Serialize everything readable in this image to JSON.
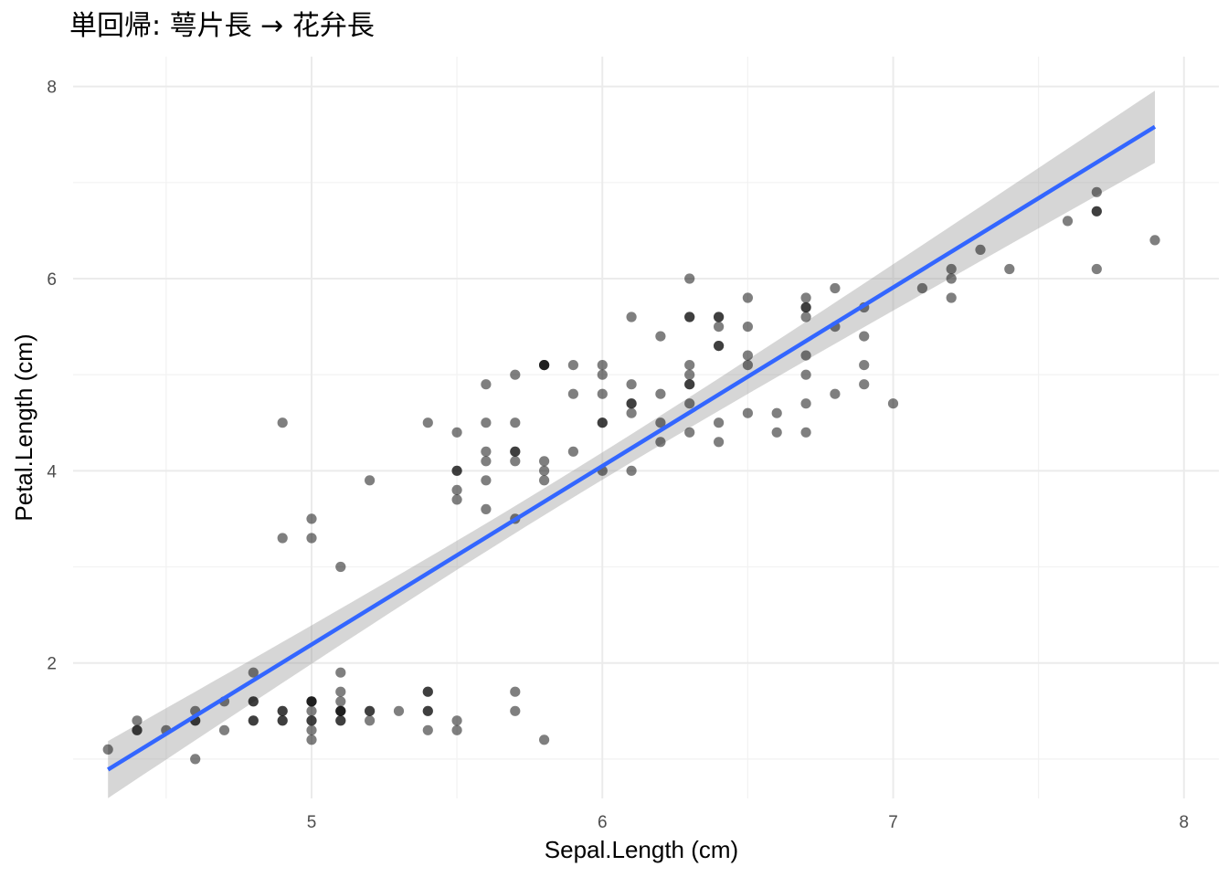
{
  "chart_data": {
    "type": "scatter",
    "title": "単回帰: 萼片長 → 花弁長",
    "xlabel": "Sepal.Length (cm)",
    "ylabel": "Petal.Length (cm)",
    "xlim": [
      4.18,
      8.12
    ],
    "ylim": [
      0.59,
      8.31
    ],
    "x_ticks": [
      5,
      6,
      7,
      8
    ],
    "y_ticks": [
      2,
      4,
      6,
      8
    ],
    "x_minor_ticks": [
      4.5,
      5.5,
      6.5,
      7.5
    ],
    "y_minor_ticks": [
      1,
      3,
      5,
      7
    ],
    "grid": true,
    "legend": "none",
    "points": {
      "color": "#000000",
      "opacity": 0.5,
      "x": [
        5.1,
        4.9,
        4.7,
        4.6,
        5.0,
        5.4,
        4.6,
        5.0,
        4.4,
        4.9,
        5.4,
        4.8,
        4.8,
        4.3,
        5.8,
        5.7,
        5.4,
        5.1,
        5.7,
        5.1,
        5.4,
        5.1,
        4.6,
        5.1,
        4.8,
        5.0,
        5.0,
        5.2,
        5.2,
        4.7,
        4.8,
        5.4,
        5.2,
        5.5,
        4.9,
        5.0,
        5.5,
        4.9,
        4.4,
        5.1,
        5.0,
        4.5,
        4.4,
        5.0,
        5.1,
        4.8,
        5.1,
        4.6,
        5.3,
        5.0,
        7.0,
        6.4,
        6.9,
        5.5,
        6.5,
        5.7,
        6.3,
        4.9,
        6.6,
        5.2,
        5.0,
        5.9,
        6.0,
        6.1,
        5.6,
        6.7,
        5.6,
        5.8,
        6.2,
        5.6,
        5.9,
        6.1,
        6.3,
        6.1,
        6.4,
        6.6,
        6.8,
        6.7,
        6.0,
        5.7,
        5.5,
        5.5,
        5.8,
        6.0,
        5.4,
        6.0,
        6.7,
        6.3,
        5.6,
        5.5,
        5.5,
        6.1,
        5.8,
        5.0,
        5.6,
        5.7,
        5.7,
        6.2,
        5.1,
        5.7,
        6.3,
        5.8,
        7.1,
        6.3,
        6.5,
        7.6,
        4.9,
        7.3,
        6.7,
        7.2,
        6.5,
        6.4,
        6.8,
        5.7,
        5.8,
        6.4,
        6.5,
        7.7,
        7.7,
        6.0,
        6.9,
        5.6,
        7.7,
        6.3,
        6.7,
        7.2,
        6.2,
        6.1,
        6.4,
        7.2,
        7.4,
        7.9,
        6.4,
        6.3,
        6.1,
        7.7,
        6.3,
        6.4,
        6.0,
        6.9,
        6.7,
        6.9,
        5.8,
        6.8,
        6.7,
        6.7,
        6.3,
        6.5,
        6.2,
        5.9
      ],
      "y": [
        1.4,
        1.4,
        1.3,
        1.5,
        1.4,
        1.7,
        1.4,
        1.5,
        1.4,
        1.5,
        1.5,
        1.6,
        1.4,
        1.1,
        1.2,
        1.5,
        1.3,
        1.4,
        1.7,
        1.5,
        1.7,
        1.5,
        1.0,
        1.7,
        1.9,
        1.6,
        1.6,
        1.5,
        1.4,
        1.6,
        1.6,
        1.5,
        1.5,
        1.4,
        1.5,
        1.2,
        1.3,
        1.4,
        1.3,
        1.5,
        1.3,
        1.3,
        1.3,
        1.6,
        1.9,
        1.4,
        1.6,
        1.4,
        1.5,
        1.4,
        4.7,
        4.5,
        4.9,
        4.0,
        4.6,
        4.5,
        4.7,
        3.3,
        4.6,
        3.9,
        3.5,
        4.2,
        4.0,
        4.7,
        3.6,
        4.4,
        4.5,
        4.1,
        4.5,
        3.9,
        4.8,
        4.0,
        4.9,
        4.7,
        4.3,
        4.4,
        4.8,
        5.0,
        4.5,
        3.5,
        3.8,
        3.7,
        3.9,
        5.1,
        4.5,
        4.5,
        4.7,
        4.4,
        4.1,
        4.0,
        4.4,
        4.6,
        4.0,
        3.3,
        4.2,
        4.2,
        4.2,
        4.3,
        3.0,
        4.1,
        6.0,
        5.1,
        5.9,
        5.6,
        5.8,
        6.6,
        4.5,
        6.3,
        5.8,
        6.1,
        5.1,
        5.3,
        5.5,
        5.0,
        5.1,
        5.3,
        5.5,
        6.7,
        6.9,
        5.0,
        5.7,
        4.9,
        6.7,
        4.9,
        5.7,
        6.0,
        4.8,
        4.9,
        5.6,
        5.8,
        6.1,
        6.4,
        5.6,
        5.1,
        5.6,
        6.1,
        5.6,
        5.5,
        4.8,
        5.4,
        5.6,
        5.1,
        5.1,
        5.9,
        5.7,
        5.2,
        5.0,
        5.2,
        5.4,
        5.1
      ]
    },
    "fit": {
      "method": "lm",
      "intercept": -7.101,
      "slope": 1.8584,
      "x_range": [
        4.3,
        7.9
      ],
      "color": "#3366ff",
      "ribbon_color": "#999999",
      "ribbon_opacity": 0.4,
      "n": 150,
      "x_mean": 5.8433,
      "sxx": 102.1683,
      "residual_se": 0.8678,
      "t_crit": 1.976
    }
  }
}
